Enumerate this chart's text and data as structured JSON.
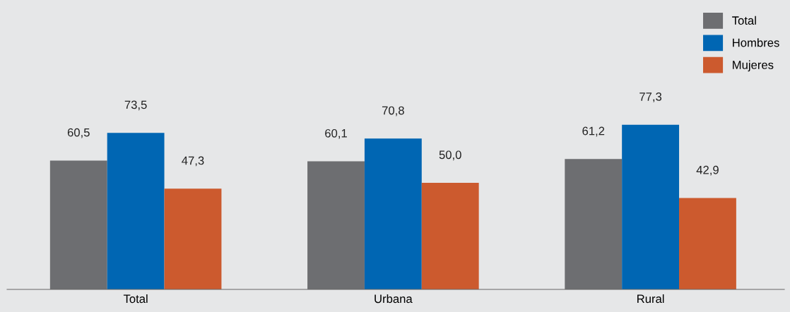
{
  "chart_data": {
    "type": "bar",
    "categories": [
      "Total",
      "Urbana",
      "Rural"
    ],
    "series": [
      {
        "name": "Total",
        "color": "#6d6e71",
        "values": [
          60.5,
          60.1,
          61.2
        ],
        "value_labels": [
          "60,5",
          "60,1",
          "61,2"
        ]
      },
      {
        "name": "Hombres",
        "color": "#0066b3",
        "values": [
          73.5,
          70.8,
          77.3
        ],
        "value_labels": [
          "73,5",
          "70,8",
          "77,3"
        ]
      },
      {
        "name": "Mujeres",
        "color": "#cc5a2e",
        "values": [
          47.3,
          50.0,
          42.9
        ],
        "value_labels": [
          "47,3",
          "50,0",
          "42,9"
        ]
      }
    ],
    "tick_labels": "x",
    "grid": false,
    "legend": "top right"
  }
}
